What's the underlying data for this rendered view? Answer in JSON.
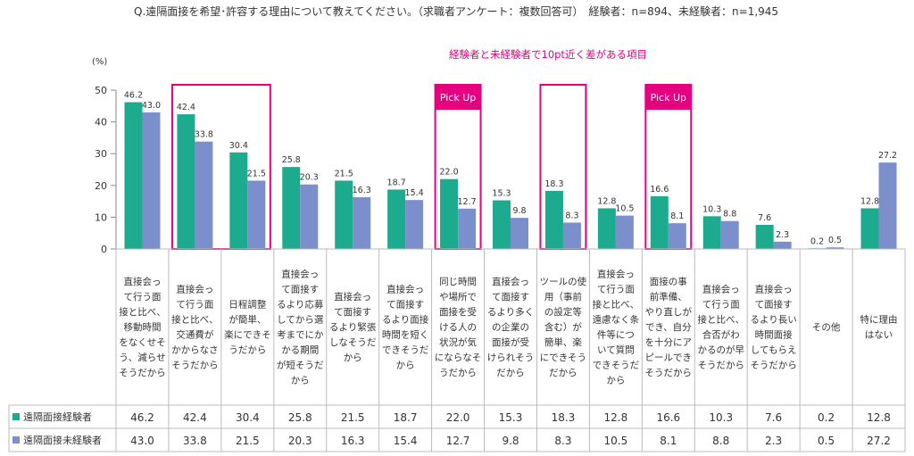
{
  "header": {
    "title": "Q.遠隔面接を希望･許容する理由について教えてください。（求職者アンケート：複数回答可）　経験者：n=894、未経験者：n=1,945",
    "note": "経験者と未経験者で10pt近く差がある項目",
    "unit": "(%)",
    "pickup_label": "Pick Up"
  },
  "chart_data": {
    "type": "bar",
    "ylim": [
      0,
      50
    ],
    "yticks": [
      0,
      10,
      20,
      30,
      40,
      50
    ],
    "categories": [
      [
        "直接会っ",
        "て行う面",
        "接と比べ、",
        "移動時間",
        "をなくせそ",
        "う、減らせ",
        "そうだから"
      ],
      [
        "直接会っ",
        "て行う面",
        "接と比べ、",
        "交通費が",
        "かからなさ",
        "そうだから"
      ],
      [
        "日程調整",
        "が簡単、",
        "楽にできそ",
        "うだから"
      ],
      [
        "直接会っ",
        "て面接す",
        "るより応募",
        "してから選",
        "考までにか",
        "かる期間",
        "が短そうだ",
        "から"
      ],
      [
        "直接会っ",
        "て面接す",
        "るより緊張",
        "しなそうだ",
        "から"
      ],
      [
        "直接会っ",
        "て面接す",
        "るより面接",
        "時間を短く",
        "できそうだ",
        "から"
      ],
      [
        "同じ時間",
        "や場所で",
        "面接を受",
        "ける人の",
        "状況が気",
        "にならなそ",
        "うだから"
      ],
      [
        "直接会っ",
        "て面接す",
        "るより多く",
        "の企業の",
        "面接が受",
        "けられそう",
        "だから"
      ],
      [
        "ツールの使",
        "用（事前",
        "の設定等",
        "含む）が",
        "簡単、楽",
        "にできそう",
        "だから"
      ],
      [
        "直接会っ",
        "て行う面",
        "接と比べ、",
        "遠慮なく条",
        "件等につ",
        "いて質問",
        "できそうだ",
        "から"
      ],
      [
        "面接の事",
        "前準備、",
        "やり直しが",
        "でき、自分",
        "を十分にア",
        "ピールでき",
        "そうだから"
      ],
      [
        "直接会っ",
        "て行う面",
        "接と比べ、",
        "合否がわ",
        "かるのが早",
        "そうだから"
      ],
      [
        "直接会っ",
        "て面接す",
        "るより長い",
        "時間面接",
        "してもらえ",
        "そうだから"
      ],
      [
        "その他"
      ],
      [
        "特に理由",
        "はない"
      ]
    ],
    "series": [
      {
        "name": "遠隔面接経験者",
        "color": "#1dab8f",
        "values": [
          46.2,
          42.4,
          30.4,
          25.8,
          21.5,
          18.7,
          22.0,
          15.3,
          18.3,
          12.8,
          16.6,
          10.3,
          7.6,
          0.2,
          12.8
        ]
      },
      {
        "name": "遠隔面接未経験者",
        "color": "#7b8fcd",
        "values": [
          43.0,
          33.8,
          21.5,
          20.3,
          16.3,
          15.4,
          12.7,
          9.8,
          8.3,
          10.5,
          8.1,
          8.8,
          2.3,
          0.5,
          27.2
        ]
      }
    ],
    "table_values": [
      [
        "46.2",
        "42.4",
        "30.4",
        "25.8",
        "21.5",
        "18.7",
        "22.0",
        "15.3",
        "18.3",
        "12.8",
        "16.6",
        "10.3",
        "7.6",
        "0.2",
        "12.8"
      ],
      [
        "43.0",
        "33.8",
        "21.5",
        "20.3",
        "16.3",
        "15.4",
        "12.7",
        "9.8",
        "8.3",
        "10.5",
        "8.1",
        "8.8",
        "2.3",
        "0.5",
        "27.2"
      ]
    ],
    "highlighted": [
      1,
      6,
      8,
      10
    ],
    "pickup": [
      6,
      10
    ],
    "highlight_color": "#e4007f",
    "grid": false,
    "legend": "table-left"
  }
}
